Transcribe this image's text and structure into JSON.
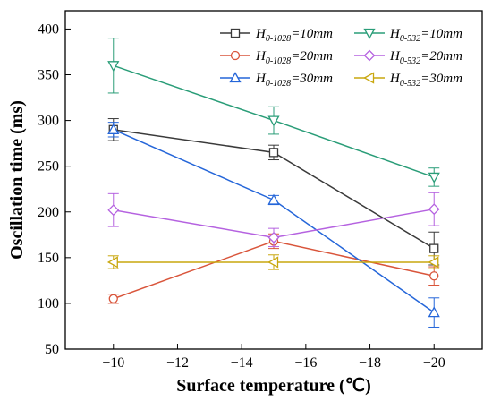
{
  "chart_data": {
    "type": "line",
    "xlabel": "Surface temperature (℃)",
    "ylabel": "Oscillation time (ms)",
    "x": [
      -10,
      -15,
      -20
    ],
    "xlim": [
      -8.5,
      -21.5
    ],
    "ylim": [
      50,
      420
    ],
    "xticks": [
      -10,
      -12,
      -14,
      -16,
      -18,
      -20
    ],
    "yticks": [
      50,
      100,
      150,
      200,
      250,
      300,
      350,
      400
    ],
    "xtick_labels": [
      "−10",
      "−12",
      "−14",
      "−16",
      "−18",
      "−20"
    ],
    "ytick_labels": [
      "50",
      "100",
      "150",
      "200",
      "250",
      "300",
      "350",
      "400"
    ],
    "legend_position": "top-right",
    "series": [
      {
        "name": "H0-1028=10mm",
        "legend_main": "H",
        "legend_sub": "0-1028",
        "legend_rest": "=10mm",
        "color": "#3a3a3a",
        "marker": "square",
        "values": [
          290,
          265,
          160
        ],
        "errors": [
          12,
          8,
          18
        ]
      },
      {
        "name": "H0-1028=20mm",
        "legend_main": "H",
        "legend_sub": "0-1028",
        "legend_rest": "=20mm",
        "color": "#d9553b",
        "marker": "circle",
        "values": [
          105,
          168,
          130
        ],
        "errors": [
          5,
          8,
          10
        ]
      },
      {
        "name": "H0-1028=30mm",
        "legend_main": "H",
        "legend_sub": "0-1028",
        "legend_rest": "=30mm",
        "color": "#2566d9",
        "marker": "triangle-up",
        "values": [
          290,
          213,
          90
        ],
        "errors": [
          8,
          5,
          16
        ]
      },
      {
        "name": "H0-532=10mm",
        "legend_main": "H",
        "legend_sub": "0-532",
        "legend_rest": "=10mm",
        "color": "#2a9d78",
        "marker": "triangle-down",
        "values": [
          360,
          300,
          238
        ],
        "errors": [
          30,
          15,
          10
        ]
      },
      {
        "name": "H0-532=20mm",
        "legend_main": "H",
        "legend_sub": "0-532",
        "legend_rest": "=20mm",
        "color": "#b562e0",
        "marker": "diamond",
        "values": [
          202,
          172,
          203
        ],
        "errors": [
          18,
          10,
          18
        ]
      },
      {
        "name": "H0-532=30mm",
        "legend_main": "H",
        "legend_sub": "0-532",
        "legend_rest": "=30mm",
        "color": "#c9a70e",
        "marker": "triangle-left",
        "values": [
          145,
          145,
          145
        ],
        "errors": [
          7,
          8,
          7
        ]
      }
    ]
  }
}
